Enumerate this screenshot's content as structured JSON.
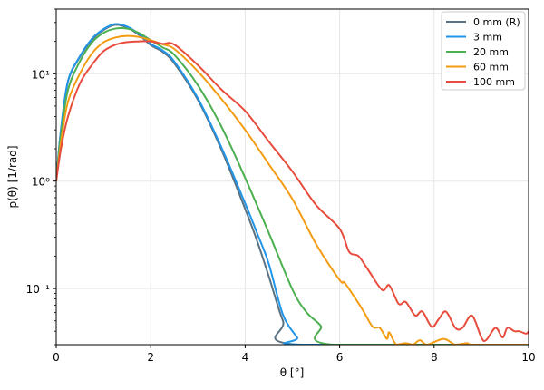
{
  "chart_data": {
    "type": "line",
    "title": "",
    "xlabel": "θ [°]",
    "ylabel": "p(θ) [1/rad]",
    "xlim": [
      0,
      10
    ],
    "ylim": [
      0.03,
      40
    ],
    "yscale": "log",
    "grid": true,
    "legend_position": "top-right",
    "x_ticks": [
      0,
      2,
      4,
      6,
      8,
      10
    ],
    "x_tick_labels": [
      "0",
      "2",
      "4",
      "6",
      "8",
      "10"
    ],
    "y_ticks": [
      10,
      1,
      0.1
    ],
    "y_tick_labels": [
      "10¹",
      "10⁰",
      "10⁻¹"
    ],
    "series": [
      {
        "name": "0 mm (R)",
        "color": "#5b7282",
        "x": [
          0,
          0.1,
          0.25,
          0.5,
          0.75,
          1,
          1.25,
          1.5,
          1.75,
          2,
          2.25,
          2.5,
          3,
          3.5,
          4,
          4.25,
          4.5,
          4.8,
          5.08,
          10
        ],
        "y": [
          1,
          3,
          8.5,
          14.3,
          20.5,
          25.5,
          28.5,
          27,
          23,
          18.5,
          16,
          12.5,
          5.7,
          1.95,
          0.55,
          0.28,
          0.13,
          0.05,
          0.03,
          0.03
        ]
      },
      {
        "name": "3 mm",
        "color": "#2196e8",
        "x": [
          0,
          0.1,
          0.25,
          0.5,
          0.75,
          1,
          1.25,
          1.5,
          1.75,
          2,
          2.25,
          2.5,
          3,
          3.5,
          4,
          4.25,
          4.5,
          4.8,
          5.1,
          5.2,
          10
        ],
        "y": [
          1,
          3,
          8.6,
          14.5,
          21,
          26,
          29,
          27.5,
          23.5,
          19,
          16.5,
          13,
          5.9,
          2.05,
          0.62,
          0.33,
          0.17,
          0.057,
          0.035,
          0.03,
          0.03
        ]
      },
      {
        "name": "20 mm",
        "color": "#4caf50",
        "x": [
          0,
          0.1,
          0.25,
          0.5,
          0.75,
          1,
          1.25,
          1.5,
          1.75,
          2,
          2.25,
          2.5,
          3,
          3.5,
          4,
          4.5,
          5,
          5.3,
          5.6,
          5.85,
          10
        ],
        "y": [
          1,
          2.7,
          7.1,
          13,
          19.4,
          24,
          26.3,
          26.3,
          24,
          20.5,
          17.6,
          15,
          7.8,
          3.2,
          1.07,
          0.33,
          0.098,
          0.06,
          0.045,
          0.03,
          0.03
        ]
      },
      {
        "name": "60 mm",
        "color": "#f39c12",
        "x": [
          0,
          0.1,
          0.25,
          0.5,
          0.75,
          1,
          1.25,
          1.5,
          1.75,
          2,
          2.25,
          2.5,
          3,
          3.5,
          4,
          4.5,
          5,
          5.5,
          6,
          6.1,
          6.3,
          6.5,
          6.7,
          6.85,
          7,
          7.05,
          7.2,
          7.4,
          7.55,
          7.7,
          7.85,
          8.2,
          8.45,
          8.7,
          8.85,
          10
        ],
        "y": [
          1,
          2.3,
          5.5,
          10,
          15.3,
          19.6,
          21.7,
          22.5,
          22,
          20.5,
          18.8,
          17,
          10.5,
          5.8,
          3,
          1.44,
          0.68,
          0.26,
          0.12,
          0.114,
          0.085,
          0.062,
          0.044,
          0.043,
          0.034,
          0.039,
          0.03,
          0.031,
          0.03,
          0.033,
          0.03,
          0.034,
          0.03,
          0.031,
          0.03,
          0.03
        ]
      },
      {
        "name": "100 mm",
        "color": "#e74c3c",
        "x": [
          0,
          0.1,
          0.25,
          0.5,
          0.75,
          1,
          1.25,
          1.5,
          1.75,
          2,
          2.25,
          2.5,
          3,
          3.5,
          4,
          4.5,
          5,
          5.5,
          6,
          6.2,
          6.4,
          6.6,
          6.9,
          7.05,
          7.25,
          7.4,
          7.6,
          7.75,
          7.95,
          8.1,
          8.25,
          8.45,
          8.6,
          8.8,
          9,
          9.1,
          9.3,
          9.45,
          9.55,
          9.7,
          9.8,
          9.95,
          10
        ],
        "y": [
          1,
          2,
          4,
          8.1,
          12,
          16.2,
          18.6,
          19.7,
          20,
          20,
          19,
          18.7,
          12,
          7.1,
          4.5,
          2.34,
          1.23,
          0.6,
          0.36,
          0.22,
          0.2,
          0.15,
          0.097,
          0.107,
          0.072,
          0.075,
          0.056,
          0.061,
          0.044,
          0.052,
          0.061,
          0.043,
          0.043,
          0.056,
          0.035,
          0.033,
          0.043,
          0.035,
          0.043,
          0.04,
          0.04,
          0.038,
          0.04
        ]
      }
    ]
  }
}
